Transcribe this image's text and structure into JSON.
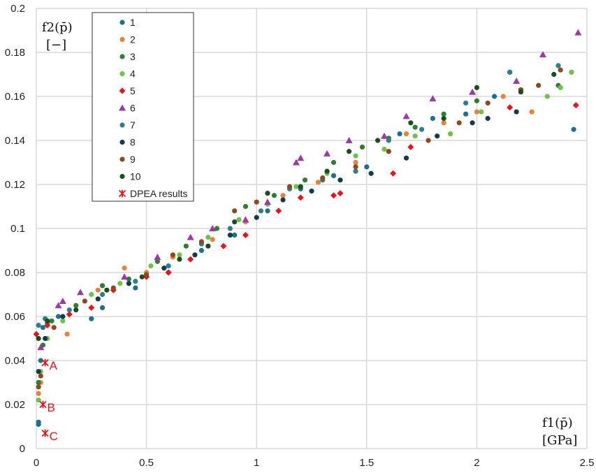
{
  "chart_data": {
    "type": "scatter",
    "xlim": [
      0,
      2.5
    ],
    "ylim": [
      0,
      0.2
    ],
    "x_ticks": [
      "0",
      "0.5",
      "1",
      "1.5",
      "2",
      "2.5"
    ],
    "y_ticks": [
      "0",
      "0.02",
      "0.04",
      "0.06",
      "0.08",
      "0.1",
      "0.12",
      "0.14",
      "0.16",
      "0.18",
      "0.2"
    ],
    "grid": true,
    "legend_position": "top-left",
    "xlabel": {
      "main": "f1(p̄)",
      "unit": "[GPa]"
    },
    "ylabel": {
      "main": "f2(p̄)",
      "unit": "[−]"
    },
    "series": [
      {
        "name": "1",
        "color": "#1f6e8c",
        "marker": "circle",
        "points": [
          [
            0.01,
            0.011
          ],
          [
            0.01,
            0.012
          ],
          [
            0.02,
            0.04
          ],
          [
            0.03,
            0.055
          ],
          [
            0.05,
            0.057
          ],
          [
            0.1,
            0.06
          ],
          [
            0.25,
            0.059
          ],
          [
            0.3,
            0.064
          ],
          [
            0.45,
            0.073
          ],
          [
            0.6,
            0.08
          ],
          [
            0.75,
            0.09
          ],
          [
            0.9,
            0.097
          ],
          [
            1.05,
            0.108
          ],
          [
            1.2,
            0.118
          ],
          [
            1.35,
            0.124
          ],
          [
            1.5,
            0.128
          ],
          [
            1.65,
            0.143
          ],
          [
            1.8,
            0.15
          ],
          [
            1.95,
            0.152
          ],
          [
            2.08,
            0.16
          ],
          [
            2.15,
            0.171
          ],
          [
            2.44,
            0.145
          ]
        ]
      },
      {
        "name": "2",
        "color": "#e8803f",
        "marker": "circle",
        "points": [
          [
            0.01,
            0.025
          ],
          [
            0.02,
            0.03
          ],
          [
            0.05,
            0.056
          ],
          [
            0.14,
            0.052
          ],
          [
            0.28,
            0.072
          ],
          [
            0.4,
            0.082
          ],
          [
            0.5,
            0.08
          ],
          [
            0.62,
            0.087
          ],
          [
            0.8,
            0.095
          ],
          [
            0.95,
            0.103
          ],
          [
            1.12,
            0.115
          ],
          [
            1.28,
            0.121
          ],
          [
            1.45,
            0.13
          ],
          [
            1.6,
            0.135
          ],
          [
            1.68,
            0.143
          ],
          [
            1.85,
            0.148
          ],
          [
            2.0,
            0.153
          ],
          [
            2.12,
            0.16
          ],
          [
            2.25,
            0.153
          ]
        ]
      },
      {
        "name": "3",
        "color": "#2e7d32",
        "marker": "circle",
        "points": [
          [
            0.01,
            0.03
          ],
          [
            0.03,
            0.047
          ],
          [
            0.07,
            0.058
          ],
          [
            0.18,
            0.065
          ],
          [
            0.3,
            0.074
          ],
          [
            0.42,
            0.077
          ],
          [
            0.55,
            0.085
          ],
          [
            0.68,
            0.092
          ],
          [
            0.82,
            0.1
          ],
          [
            0.95,
            0.11
          ],
          [
            1.08,
            0.115
          ],
          [
            1.22,
            0.122
          ],
          [
            1.35,
            0.13
          ],
          [
            1.48,
            0.137
          ],
          [
            1.6,
            0.141
          ],
          [
            1.72,
            0.146
          ],
          [
            1.85,
            0.152
          ],
          [
            2.0,
            0.158
          ],
          [
            2.2,
            0.163
          ],
          [
            2.37,
            0.165
          ]
        ]
      },
      {
        "name": "4",
        "color": "#6cc24a",
        "marker": "circle",
        "points": [
          [
            0.01,
            0.022
          ],
          [
            0.02,
            0.035
          ],
          [
            0.05,
            0.05
          ],
          [
            0.12,
            0.058
          ],
          [
            0.25,
            0.07
          ],
          [
            0.38,
            0.075
          ],
          [
            0.52,
            0.083
          ],
          [
            0.65,
            0.088
          ],
          [
            0.78,
            0.096
          ],
          [
            0.92,
            0.104
          ],
          [
            1.05,
            0.111
          ],
          [
            1.18,
            0.119
          ],
          [
            1.32,
            0.125
          ],
          [
            1.45,
            0.133
          ],
          [
            1.58,
            0.136
          ],
          [
            1.72,
            0.142
          ],
          [
            1.88,
            0.143
          ],
          [
            2.02,
            0.153
          ],
          [
            2.32,
            0.16
          ],
          [
            2.38,
            0.164
          ],
          [
            2.43,
            0.171
          ]
        ]
      },
      {
        "name": "5",
        "color": "#e8141b",
        "marker": "diamond",
        "points": [
          [
            0.0,
            0.052
          ],
          [
            0.05,
            0.056
          ],
          [
            0.15,
            0.061
          ],
          [
            0.25,
            0.064
          ],
          [
            0.35,
            0.072
          ],
          [
            0.5,
            0.078
          ],
          [
            0.6,
            0.08
          ],
          [
            0.7,
            0.086
          ],
          [
            0.85,
            0.092
          ],
          [
            0.95,
            0.097
          ],
          [
            1.1,
            0.108
          ],
          [
            1.2,
            0.114
          ],
          [
            1.35,
            0.115
          ],
          [
            1.38,
            0.116
          ],
          [
            1.62,
            0.125
          ],
          [
            1.7,
            0.137
          ],
          [
            2.15,
            0.155
          ],
          [
            2.45,
            0.156
          ]
        ]
      },
      {
        "name": "6",
        "color": "#9c3aa5",
        "marker": "triangle",
        "points": [
          [
            0.02,
            0.046
          ],
          [
            0.1,
            0.065
          ],
          [
            0.12,
            0.067
          ],
          [
            0.2,
            0.071
          ],
          [
            0.4,
            0.078
          ],
          [
            0.55,
            0.087
          ],
          [
            0.7,
            0.096
          ],
          [
            0.8,
            0.1
          ],
          [
            0.95,
            0.104
          ],
          [
            1.05,
            0.112
          ],
          [
            1.18,
            0.13
          ],
          [
            1.2,
            0.132
          ],
          [
            1.32,
            0.134
          ],
          [
            1.42,
            0.14
          ],
          [
            1.58,
            0.142
          ],
          [
            1.68,
            0.151
          ],
          [
            1.8,
            0.159
          ],
          [
            1.98,
            0.162
          ],
          [
            2.18,
            0.167
          ],
          [
            2.3,
            0.179
          ],
          [
            2.46,
            0.189
          ]
        ]
      },
      {
        "name": "7",
        "color": "#2a8090",
        "marker": "circle",
        "points": [
          [
            0.01,
            0.056
          ],
          [
            0.04,
            0.059
          ],
          [
            0.15,
            0.063
          ],
          [
            0.3,
            0.07
          ],
          [
            0.45,
            0.076
          ],
          [
            0.6,
            0.083
          ],
          [
            0.75,
            0.093
          ],
          [
            0.88,
            0.1
          ],
          [
            1.02,
            0.108
          ],
          [
            1.15,
            0.118
          ],
          [
            1.3,
            0.122
          ],
          [
            1.45,
            0.126
          ],
          [
            1.6,
            0.14
          ],
          [
            1.75,
            0.145
          ],
          [
            1.95,
            0.157
          ],
          [
            2.15,
            0.171
          ],
          [
            2.37,
            0.174
          ]
        ]
      },
      {
        "name": "8",
        "color": "#143a50",
        "marker": "circle",
        "points": [
          [
            0.01,
            0.035
          ],
          [
            0.04,
            0.05
          ],
          [
            0.12,
            0.06
          ],
          [
            0.28,
            0.068
          ],
          [
            0.42,
            0.075
          ],
          [
            0.58,
            0.082
          ],
          [
            0.72,
            0.088
          ],
          [
            0.88,
            0.097
          ],
          [
            1.0,
            0.105
          ],
          [
            1.12,
            0.113
          ],
          [
            1.25,
            0.117
          ],
          [
            1.38,
            0.122
          ],
          [
            1.52,
            0.125
          ],
          [
            1.68,
            0.132
          ],
          [
            1.82,
            0.142
          ],
          [
            1.98,
            0.148
          ],
          [
            2.05,
            0.15
          ],
          [
            2.18,
            0.153
          ]
        ]
      },
      {
        "name": "9",
        "color": "#8b4a1e",
        "marker": "circle",
        "points": [
          [
            0.01,
            0.028
          ],
          [
            0.02,
            0.033
          ],
          [
            0.08,
            0.055
          ],
          [
            0.22,
            0.067
          ],
          [
            0.35,
            0.073
          ],
          [
            0.5,
            0.079
          ],
          [
            0.62,
            0.088
          ],
          [
            0.75,
            0.094
          ],
          [
            0.9,
            0.108
          ],
          [
            1.0,
            0.112
          ],
          [
            1.15,
            0.119
          ],
          [
            1.3,
            0.123
          ],
          [
            1.45,
            0.128
          ],
          [
            1.6,
            0.135
          ],
          [
            1.78,
            0.14
          ],
          [
            1.92,
            0.148
          ],
          [
            2.05,
            0.157
          ],
          [
            2.2,
            0.163
          ],
          [
            2.28,
            0.165
          ],
          [
            2.38,
            0.172
          ]
        ]
      },
      {
        "name": "10",
        "color": "#1b4d1e",
        "marker": "circle",
        "points": [
          [
            0.01,
            0.05
          ],
          [
            0.05,
            0.058
          ],
          [
            0.18,
            0.063
          ],
          [
            0.32,
            0.072
          ],
          [
            0.48,
            0.078
          ],
          [
            0.65,
            0.086
          ],
          [
            0.78,
            0.092
          ],
          [
            0.9,
            0.103
          ],
          [
            1.05,
            0.116
          ],
          [
            1.2,
            0.119
          ],
          [
            1.32,
            0.126
          ],
          [
            1.42,
            0.135
          ],
          [
            1.55,
            0.14
          ],
          [
            1.7,
            0.148
          ],
          [
            1.85,
            0.15
          ],
          [
            2.0,
            0.164
          ],
          [
            2.2,
            0.162
          ],
          [
            2.35,
            0.17
          ]
        ]
      },
      {
        "name": "DPEA results",
        "color": "#e8141b",
        "marker": "asterisk",
        "points": [
          [
            0.04,
            0.039
          ],
          [
            0.03,
            0.02
          ],
          [
            0.04,
            0.007
          ]
        ]
      }
    ],
    "annotations": [
      {
        "text": "A",
        "x": 0.04,
        "y": 0.039
      },
      {
        "text": "B",
        "x": 0.03,
        "y": 0.02
      },
      {
        "text": "C",
        "x": 0.04,
        "y": 0.007
      }
    ]
  }
}
